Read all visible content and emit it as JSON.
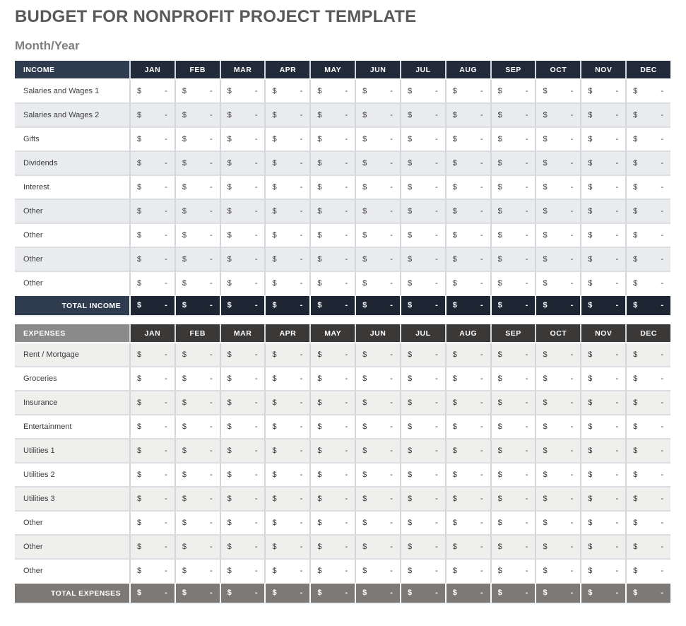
{
  "page": {
    "title": "BUDGET FOR NONPROFIT PROJECT TEMPLATE",
    "subtitle": "Month/Year"
  },
  "months": [
    "JAN",
    "FEB",
    "MAR",
    "APR",
    "MAY",
    "JUN",
    "JUL",
    "AUG",
    "SEP",
    "OCT",
    "NOV",
    "DEC"
  ],
  "cell": {
    "currency": "$",
    "placeholder": "-"
  },
  "income": {
    "header": "INCOME",
    "rows": [
      "Salaries and Wages 1",
      "Salaries and Wages 2",
      "Gifts",
      "Dividends",
      "Interest",
      "Other",
      "Other",
      "Other",
      "Other"
    ],
    "total_label": "TOTAL INCOME"
  },
  "expenses": {
    "header": "EXPENSES",
    "rows": [
      "Rent / Mortgage",
      "Groceries",
      "Insurance",
      "Entertainment",
      "Utilities 1",
      "Utilities 2",
      "Utilities 3",
      "Other",
      "Other",
      "Other"
    ],
    "total_label": "TOTAL EXPENSES"
  },
  "colors": {
    "title_color": "#595959",
    "subtitle_color": "#7f7f7f",
    "income_header_label_bg": "#2f3b4e",
    "income_month_header_bg": "#222b3a",
    "income_total_label_bg": "#2f3b4e",
    "income_total_value_bg": "#1e2634",
    "income_alt_row_bg": "#e9ebef",
    "expenses_header_label_bg": "#8a8a8a",
    "expenses_month_header_bg": "#3b3838",
    "expenses_total_bg": "#7c7977",
    "expenses_alt_row_bg": "#efefee",
    "grid_line": "#d3d6da",
    "row_line": "#dcdee1",
    "body_text": "#3c3c3c"
  }
}
